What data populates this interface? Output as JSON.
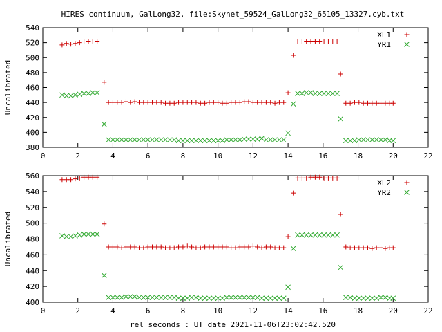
{
  "title": "HIRES continuum, GalLong32, file:Skynet_59524_GalLong32_65105_13327.cyb.txt",
  "xlabel": "rel seconds : UT date 2021-11-06T23:02:42.520",
  "colors": {
    "xl": "#cc0000",
    "yr": "#33aa33"
  },
  "chart_data": [
    {
      "type": "scatter",
      "ylabel": "Uncalibrated",
      "xlim": [
        0,
        22
      ],
      "ylim": [
        380,
        540
      ],
      "xticks": [
        0,
        2,
        4,
        6,
        8,
        10,
        12,
        14,
        16,
        18,
        20,
        22
      ],
      "yticks": [
        380,
        400,
        420,
        440,
        460,
        480,
        500,
        520,
        540
      ],
      "legend_position": "top-right",
      "series": [
        {
          "name": "XL1",
          "marker": "plus",
          "x": [
            1.1,
            1.35,
            1.6,
            1.85,
            2.1,
            2.35,
            2.6,
            2.85,
            3.1,
            3.5,
            3.75,
            4.0,
            4.25,
            4.5,
            4.75,
            5.0,
            5.25,
            5.5,
            5.75,
            6.0,
            6.25,
            6.5,
            6.75,
            7.0,
            7.25,
            7.5,
            7.75,
            8.0,
            8.25,
            8.5,
            8.75,
            9.0,
            9.25,
            9.5,
            9.75,
            10.0,
            10.25,
            10.5,
            10.75,
            11.0,
            11.25,
            11.5,
            11.75,
            12.0,
            12.25,
            12.5,
            12.75,
            13.0,
            13.25,
            13.5,
            13.75,
            14.0,
            14.3,
            14.55,
            14.8,
            15.05,
            15.3,
            15.55,
            15.8,
            16.05,
            16.3,
            16.55,
            16.8,
            17.0,
            17.3,
            17.55,
            17.8,
            18.05,
            18.3,
            18.55,
            18.8,
            19.05,
            19.3,
            19.55,
            19.8,
            20.0
          ],
          "y": [
            517,
            519,
            518,
            519,
            520,
            521,
            522,
            521,
            522,
            467,
            440,
            440,
            440,
            440,
            441,
            440,
            441,
            440,
            440,
            440,
            440,
            440,
            440,
            439,
            439,
            439,
            440,
            440,
            440,
            440,
            440,
            439,
            439,
            440,
            440,
            440,
            439,
            439,
            440,
            440,
            440,
            441,
            441,
            440,
            440,
            440,
            440,
            440,
            439,
            440,
            440,
            453,
            503,
            521,
            521,
            522,
            522,
            522,
            522,
            521,
            521,
            521,
            521,
            478,
            439,
            439,
            440,
            440,
            439,
            439,
            439,
            439,
            439,
            439,
            439,
            439
          ]
        },
        {
          "name": "YR1",
          "marker": "cross",
          "x": [
            1.1,
            1.35,
            1.6,
            1.85,
            2.1,
            2.35,
            2.6,
            2.85,
            3.1,
            3.5,
            3.75,
            4.0,
            4.25,
            4.5,
            4.75,
            5.0,
            5.25,
            5.5,
            5.75,
            6.0,
            6.25,
            6.5,
            6.75,
            7.0,
            7.25,
            7.5,
            7.75,
            8.0,
            8.25,
            8.5,
            8.75,
            9.0,
            9.25,
            9.5,
            9.75,
            10.0,
            10.25,
            10.5,
            10.75,
            11.0,
            11.25,
            11.5,
            11.75,
            12.0,
            12.25,
            12.5,
            12.75,
            13.0,
            13.25,
            13.5,
            13.75,
            14.0,
            14.3,
            14.55,
            14.8,
            15.05,
            15.3,
            15.55,
            15.8,
            16.05,
            16.3,
            16.55,
            16.8,
            17.0,
            17.3,
            17.55,
            17.8,
            18.05,
            18.3,
            18.55,
            18.8,
            19.05,
            19.3,
            19.55,
            19.8,
            20.0
          ],
          "y": [
            450,
            449,
            449,
            450,
            451,
            452,
            452,
            453,
            453,
            411,
            390,
            390,
            390,
            390,
            390,
            390,
            390,
            390,
            390,
            390,
            390,
            390,
            390,
            390,
            390,
            390,
            389,
            389,
            389,
            389,
            389,
            389,
            389,
            389,
            389,
            389,
            389,
            390,
            390,
            390,
            390,
            391,
            391,
            391,
            391,
            392,
            390,
            390,
            390,
            390,
            390,
            399,
            438,
            452,
            452,
            453,
            453,
            452,
            452,
            452,
            452,
            452,
            452,
            418,
            389,
            389,
            389,
            390,
            390,
            390,
            390,
            390,
            390,
            390,
            389,
            389
          ]
        }
      ]
    },
    {
      "type": "scatter",
      "ylabel": "Uncalibrated",
      "xlim": [
        0,
        22
      ],
      "ylim": [
        400,
        560
      ],
      "xticks": [
        0,
        2,
        4,
        6,
        8,
        10,
        12,
        14,
        16,
        18,
        20,
        22
      ],
      "yticks": [
        400,
        420,
        440,
        460,
        480,
        500,
        520,
        540,
        560
      ],
      "legend_position": "top-right",
      "series": [
        {
          "name": "XL2",
          "marker": "plus",
          "x": [
            1.1,
            1.35,
            1.6,
            1.85,
            2.1,
            2.35,
            2.6,
            2.85,
            3.1,
            3.5,
            3.75,
            4.0,
            4.25,
            4.5,
            4.75,
            5.0,
            5.25,
            5.5,
            5.75,
            6.0,
            6.25,
            6.5,
            6.75,
            7.0,
            7.25,
            7.5,
            7.75,
            8.0,
            8.25,
            8.5,
            8.75,
            9.0,
            9.25,
            9.5,
            9.75,
            10.0,
            10.25,
            10.5,
            10.75,
            11.0,
            11.25,
            11.5,
            11.75,
            12.0,
            12.25,
            12.5,
            12.75,
            13.0,
            13.25,
            13.5,
            13.75,
            14.0,
            14.3,
            14.55,
            14.8,
            15.05,
            15.3,
            15.55,
            15.8,
            16.05,
            16.3,
            16.55,
            16.8,
            17.0,
            17.3,
            17.55,
            17.8,
            18.05,
            18.3,
            18.55,
            18.8,
            19.05,
            19.3,
            19.55,
            19.8,
            20.0
          ],
          "y": [
            555,
            555,
            555,
            556,
            557,
            558,
            558,
            558,
            558,
            499,
            470,
            470,
            470,
            469,
            470,
            470,
            470,
            469,
            469,
            470,
            470,
            470,
            470,
            469,
            469,
            469,
            470,
            470,
            471,
            470,
            469,
            469,
            470,
            470,
            470,
            470,
            470,
            470,
            469,
            469,
            470,
            470,
            470,
            471,
            470,
            469,
            470,
            470,
            469,
            469,
            469,
            483,
            538,
            557,
            557,
            557,
            558,
            558,
            558,
            557,
            557,
            557,
            557,
            511,
            470,
            469,
            469,
            469,
            469,
            469,
            468,
            469,
            469,
            468,
            469,
            469
          ]
        },
        {
          "name": "YR2",
          "marker": "cross",
          "x": [
            1.1,
            1.35,
            1.6,
            1.85,
            2.1,
            2.35,
            2.6,
            2.85,
            3.1,
            3.5,
            3.75,
            4.0,
            4.25,
            4.5,
            4.75,
            5.0,
            5.25,
            5.5,
            5.75,
            6.0,
            6.25,
            6.5,
            6.75,
            7.0,
            7.25,
            7.5,
            7.75,
            8.0,
            8.25,
            8.5,
            8.75,
            9.0,
            9.25,
            9.5,
            9.75,
            10.0,
            10.25,
            10.5,
            10.75,
            11.0,
            11.25,
            11.5,
            11.75,
            12.0,
            12.25,
            12.5,
            12.75,
            13.0,
            13.25,
            13.5,
            13.75,
            14.0,
            14.3,
            14.55,
            14.8,
            15.05,
            15.3,
            15.55,
            15.8,
            16.05,
            16.3,
            16.55,
            16.8,
            17.0,
            17.3,
            17.55,
            17.8,
            18.05,
            18.3,
            18.55,
            18.8,
            19.05,
            19.3,
            19.55,
            19.8,
            20.0
          ],
          "y": [
            484,
            483,
            483,
            484,
            485,
            486,
            486,
            486,
            486,
            434,
            406,
            406,
            406,
            406,
            407,
            407,
            407,
            406,
            406,
            406,
            406,
            406,
            406,
            406,
            406,
            406,
            405,
            405,
            405,
            406,
            406,
            405,
            405,
            405,
            405,
            405,
            405,
            406,
            406,
            406,
            406,
            406,
            406,
            406,
            406,
            405,
            405,
            405,
            405,
            405,
            405,
            419,
            468,
            485,
            485,
            485,
            485,
            485,
            485,
            485,
            485,
            485,
            485,
            444,
            406,
            406,
            405,
            405,
            405,
            405,
            405,
            405,
            406,
            406,
            405,
            405
          ]
        }
      ]
    }
  ]
}
